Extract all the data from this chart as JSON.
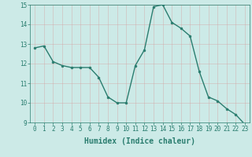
{
  "x": [
    0,
    1,
    2,
    3,
    4,
    5,
    6,
    7,
    8,
    9,
    10,
    11,
    12,
    13,
    14,
    15,
    16,
    17,
    18,
    19,
    20,
    21,
    22,
    23
  ],
  "y": [
    12.8,
    12.9,
    12.1,
    11.9,
    11.8,
    11.8,
    11.8,
    11.3,
    10.3,
    10.0,
    10.0,
    11.9,
    12.7,
    14.9,
    15.0,
    14.1,
    13.8,
    13.4,
    11.6,
    10.3,
    10.1,
    9.7,
    9.4,
    8.9
  ],
  "line_color": "#2a7d6f",
  "marker": "o",
  "markersize": 2,
  "linewidth": 1.0,
  "xlabel": "Humidex (Indice chaleur)",
  "xlabel_fontsize": 7,
  "ylim": [
    9,
    15
  ],
  "xlim": [
    -0.5,
    23.5
  ],
  "yticks": [
    9,
    10,
    11,
    12,
    13,
    14,
    15
  ],
  "xticks": [
    0,
    1,
    2,
    3,
    4,
    5,
    6,
    7,
    8,
    9,
    10,
    11,
    12,
    13,
    14,
    15,
    16,
    17,
    18,
    19,
    20,
    21,
    22,
    23
  ],
  "bg_color": "#cceae7",
  "grid_color_major": "#b8d8d4",
  "grid_color_minor": "#d4ecea",
  "tick_fontsize": 5.5,
  "tick_color": "#2a7d6f",
  "xlabel_color": "#2a7d6f"
}
